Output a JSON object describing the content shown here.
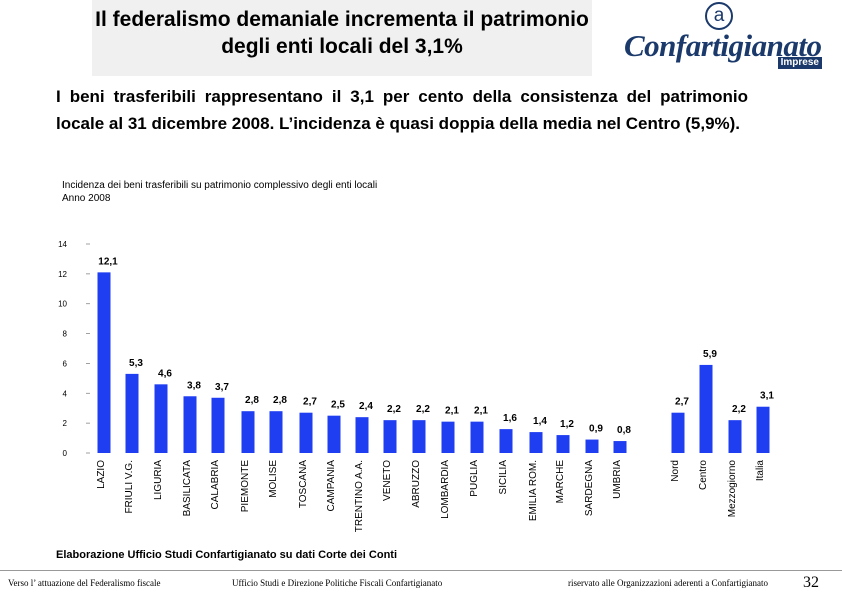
{
  "header": {
    "title": "Il federalismo demaniale incrementa il patrimonio degli enti locali del 3,1%",
    "logo_text": "Confartigianato",
    "logo_mark": "a",
    "logo_sub": "Imprese"
  },
  "subtitle": "I beni trasferibili rappresentano il 3,1 per cento della consistenza del patrimonio locale al 31 dicembre 2008. L’incidenza è quasi doppia della media nel Centro (5,9%).",
  "chart_data": {
    "type": "bar",
    "title_lines": [
      "Incidenza dei beni trasferibili su patrimonio complessivo degli enti locali",
      "Anno 2008"
    ],
    "categories": [
      "LAZIO",
      "FRIULI V.G.",
      "LIGURIA",
      "BASILICATA",
      "CALABRIA",
      "PIEMONTE",
      "MOLISE",
      "TOSCANA",
      "CAMPANIA",
      "TRENTINO A.A.",
      "VENETO",
      "ABRUZZO",
      "LOMBARDIA",
      "PUGLIA",
      "SICILIA",
      "EMILIA ROM.",
      "MARCHE",
      "SARDEGNA",
      "UMBRIA",
      "Nord",
      "Centro",
      "Mezzogiorno",
      "Italia"
    ],
    "values": [
      12.1,
      5.3,
      4.6,
      3.8,
      3.7,
      2.8,
      2.8,
      2.7,
      2.5,
      2.4,
      2.2,
      2.2,
      2.1,
      2.1,
      1.6,
      1.4,
      1.2,
      0.9,
      0.8,
      2.7,
      5.9,
      2.2,
      3.1
    ],
    "labels": [
      "12,1",
      "5,3",
      "4,6",
      "3,8",
      "3,7",
      "2,8",
      "2,8",
      "2,7",
      "2,5",
      "2,4",
      "2,2",
      "2,2",
      "2,1",
      "2,1",
      "1,6",
      "1,4",
      "1,2",
      "0,9",
      "0,8",
      "2,7",
      "5,9",
      "2,2",
      "3,1"
    ],
    "ylim": [
      0,
      14
    ],
    "yticks": [
      0,
      2,
      4,
      6,
      8,
      10,
      12,
      14
    ],
    "bar_color": "#1f3ef2"
  },
  "source": "Elaborazione Ufficio Studi Confartigianato su dati Corte dei Conti",
  "footer": {
    "left": "Verso l’ attuazione del Federalismo fiscale",
    "center": "Ufficio Studi e Direzione Politiche Fiscali Confartigianato",
    "right": "riservato alle Organizzazioni aderenti a Confartigianato",
    "page": "32"
  }
}
